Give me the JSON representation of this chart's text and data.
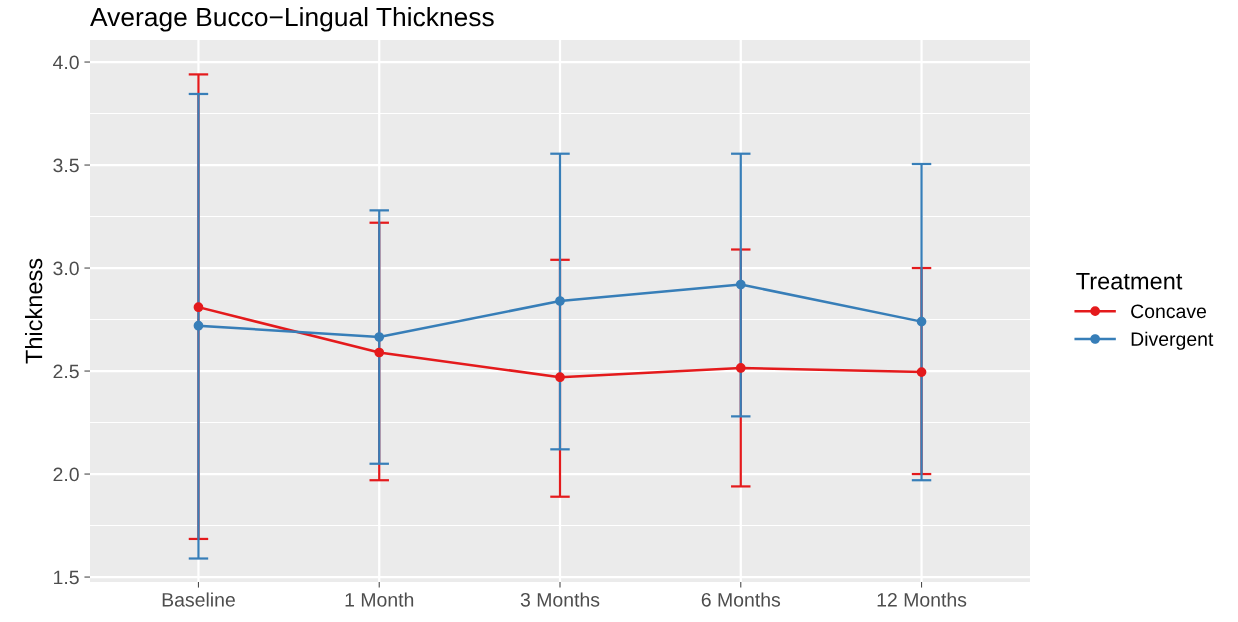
{
  "chart_data": {
    "type": "line",
    "title": "Average Bucco−Lingual Thickness",
    "ylabel": "Thickness",
    "legend_title": "Treatment",
    "categories": [
      "Baseline",
      "1 Month",
      "3 Months",
      "6 Months",
      "12 Months"
    ],
    "series": [
      {
        "name": "Concave",
        "color": "#e41a1c",
        "values": [
          2.81,
          2.59,
          2.47,
          2.515,
          2.495
        ],
        "errors": [
          [
            1.685,
            3.94
          ],
          [
            1.97,
            3.22
          ],
          [
            1.89,
            3.04
          ],
          [
            1.94,
            3.09
          ],
          [
            2.0,
            3.0
          ]
        ]
      },
      {
        "name": "Divergent",
        "color": "#377eb8",
        "values": [
          2.72,
          2.665,
          2.84,
          2.92,
          2.74
        ],
        "errors": [
          [
            1.59,
            3.845
          ],
          [
            2.05,
            3.28
          ],
          [
            2.12,
            3.555
          ],
          [
            2.28,
            3.555
          ],
          [
            1.97,
            3.505
          ]
        ]
      }
    ],
    "ylim": [
      1.476,
      4.107
    ],
    "yticks": [
      {
        "value": 1.5,
        "label": "1.5"
      },
      {
        "value": 2.0,
        "label": "2.0"
      },
      {
        "value": 2.5,
        "label": "2.5"
      },
      {
        "value": 3.0,
        "label": "3.0"
      },
      {
        "value": 3.5,
        "label": "3.5"
      },
      {
        "value": 4.0,
        "label": "4.0"
      }
    ],
    "grid": true,
    "legend": "right",
    "marker": "circle",
    "line_style": "solid"
  }
}
